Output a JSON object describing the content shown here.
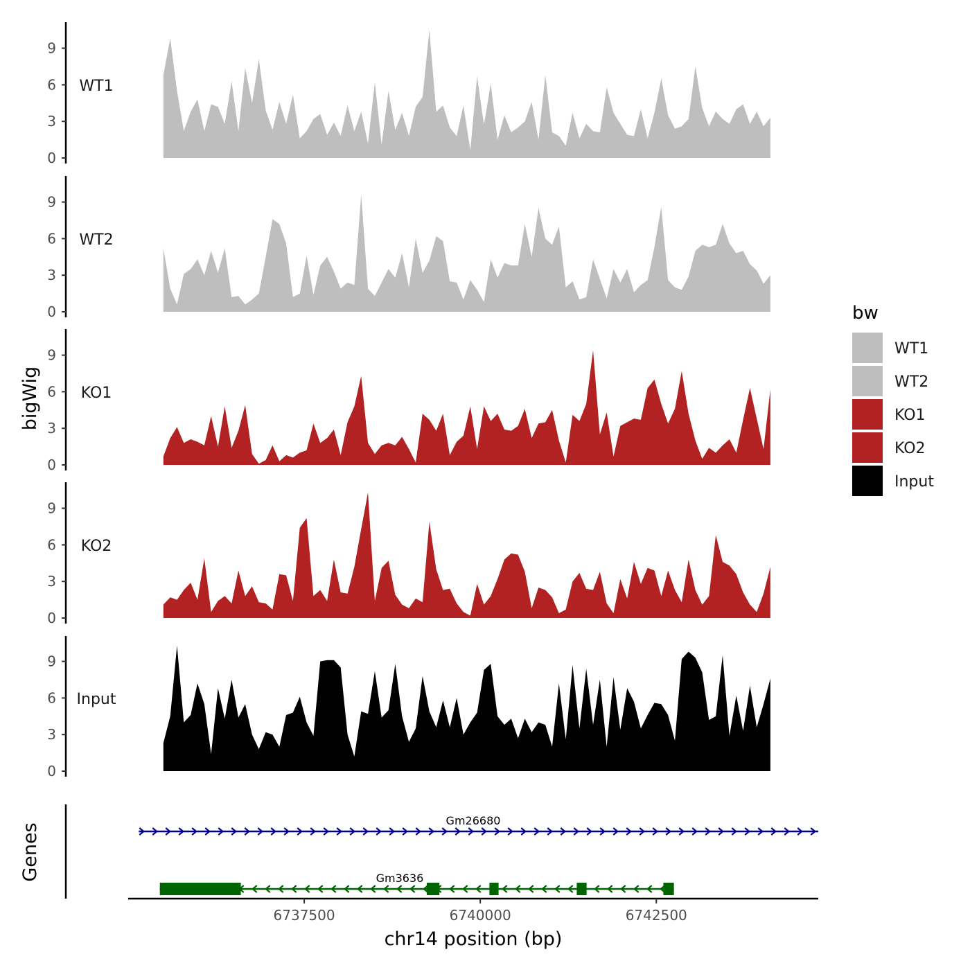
{
  "chart_data": {
    "type": "area",
    "title": "",
    "ylabel": "bigWig",
    "xlabel": "chr14 position (bp)",
    "genes_label": "Genes",
    "ylim": [
      0,
      11
    ],
    "y_ticks": [
      0,
      3,
      6,
      9
    ],
    "x_range": [
      6735000,
      6744800
    ],
    "x_ticks": [
      6737500,
      6740000,
      6742500
    ],
    "x_tick_labels": [
      "6737500",
      "6740000",
      "6742500"
    ],
    "signal_x_start": 6735500,
    "signal_x_end": 6744120,
    "legend": {
      "title": "bw",
      "position": "right",
      "entries": [
        {
          "name": "WT1",
          "color": "#bebebe"
        },
        {
          "name": "WT2",
          "color": "#bebebe"
        },
        {
          "name": "KO1",
          "color": "#b22222"
        },
        {
          "name": "KO2",
          "color": "#b22222"
        },
        {
          "name": "Input",
          "color": "#000000"
        }
      ]
    },
    "series": [
      {
        "name": "WT1",
        "color": "#bebebe",
        "values": [
          6.8,
          9.8,
          5.5,
          2.2,
          3.8,
          4.8,
          2.2,
          4.4,
          4.2,
          2.8,
          6.3,
          2.2,
          7.4,
          4.5,
          8.1,
          3.9,
          2.3,
          4.6,
          2.8,
          5.2,
          1.6,
          2.2,
          3.2,
          3.6,
          1.9,
          2.9,
          1.8,
          4.3,
          2.2,
          3.8,
          1.2,
          6.2,
          1.1,
          5.5,
          2.3,
          3.7,
          1.8,
          4.2,
          5.0,
          10.5,
          3.8,
          4.3,
          2.5,
          1.8,
          4.3,
          0.6,
          6.7,
          2.7,
          6.1,
          1.5,
          3.5,
          2.1,
          2.5,
          3.0,
          4.6,
          1.5,
          6.8,
          2.1,
          1.8,
          1.0,
          3.7,
          1.6,
          2.8,
          2.2,
          2.1,
          5.8,
          3.7,
          2.8,
          1.9,
          1.8,
          4.0,
          1.6,
          3.7,
          6.5,
          3.5,
          2.4,
          2.6,
          3.2,
          7.5,
          4.1,
          2.6,
          3.8,
          3.2,
          2.8,
          4.0,
          4.4,
          2.8,
          3.8,
          2.6,
          3.3
        ]
      },
      {
        "name": "WT2",
        "color": "#bebebe",
        "values": [
          5.2,
          1.9,
          0.6,
          3.1,
          3.5,
          4.3,
          3.0,
          5.0,
          3.2,
          5.2,
          1.2,
          1.3,
          0.6,
          1.0,
          1.5,
          4.5,
          7.6,
          7.2,
          5.6,
          1.2,
          1.5,
          4.6,
          1.4,
          3.8,
          4.5,
          3.3,
          1.9,
          2.4,
          2.2,
          9.6,
          1.9,
          1.3,
          2.4,
          3.5,
          2.8,
          4.8,
          2.0,
          6.0,
          3.2,
          4.2,
          6.2,
          5.8,
          2.5,
          2.4,
          1.0,
          2.6,
          1.8,
          0.8,
          4.3,
          2.8,
          4.0,
          3.8,
          3.8,
          7.2,
          4.5,
          8.5,
          6.0,
          5.5,
          7.0,
          2.0,
          2.5,
          1.0,
          1.2,
          4.3,
          2.7,
          1.1,
          3.5,
          2.4,
          3.5,
          1.6,
          2.2,
          2.6,
          5.3,
          8.6,
          2.6,
          2.0,
          1.8,
          2.9,
          5.0,
          5.5,
          5.3,
          5.5,
          7.2,
          5.6,
          4.8,
          5.0,
          3.9,
          3.4,
          2.3,
          3.0
        ]
      },
      {
        "name": "KO1",
        "color": "#b22222",
        "values": [
          0.7,
          2.2,
          3.1,
          1.8,
          2.1,
          1.9,
          1.6,
          4.0,
          1.5,
          4.8,
          1.4,
          2.8,
          4.9,
          0.9,
          0.1,
          0.4,
          1.6,
          0.3,
          0.8,
          0.6,
          1.0,
          1.2,
          3.4,
          1.8,
          2.2,
          2.9,
          0.8,
          3.5,
          4.8,
          7.3,
          1.8,
          0.9,
          1.6,
          1.8,
          1.6,
          2.3,
          1.3,
          0.2,
          4.2,
          3.7,
          2.8,
          4.2,
          0.8,
          1.9,
          2.4,
          4.8,
          1.3,
          4.8,
          3.6,
          4.2,
          2.9,
          2.8,
          3.2,
          4.6,
          2.2,
          3.4,
          3.5,
          4.5,
          2.0,
          0.2,
          4.1,
          3.6,
          5.0,
          9.4,
          2.5,
          4.3,
          0.7,
          3.2,
          3.5,
          3.8,
          3.7,
          6.3,
          7.0,
          5.0,
          3.4,
          4.6,
          7.7,
          4.2,
          2.0,
          0.5,
          1.4,
          1.0,
          1.6,
          2.1,
          1.0,
          3.7,
          6.3,
          3.8,
          1.3,
          6.2
        ]
      },
      {
        "name": "KO2",
        "color": "#b22222",
        "values": [
          1.1,
          1.7,
          1.5,
          2.3,
          2.9,
          1.5,
          4.9,
          0.5,
          1.4,
          1.8,
          1.2,
          3.9,
          1.8,
          2.6,
          1.3,
          1.2,
          0.7,
          3.6,
          3.5,
          1.4,
          7.4,
          8.2,
          1.8,
          2.3,
          1.4,
          4.8,
          2.1,
          2.0,
          4.2,
          7.3,
          10.3,
          1.4,
          4.1,
          4.7,
          1.9,
          1.1,
          0.8,
          1.6,
          1.3,
          7.9,
          4.0,
          2.3,
          2.4,
          1.2,
          0.5,
          0.2,
          2.8,
          1.1,
          1.8,
          3.2,
          4.8,
          5.3,
          5.2,
          3.8,
          0.8,
          2.5,
          2.3,
          1.7,
          0.4,
          0.7,
          3.0,
          3.7,
          2.4,
          2.3,
          3.8,
          1.2,
          0.4,
          3.2,
          1.6,
          4.6,
          2.8,
          4.1,
          3.9,
          1.8,
          3.9,
          2.3,
          1.3,
          4.8,
          2.3,
          1.1,
          1.8,
          6.8,
          4.6,
          4.3,
          3.6,
          2.1,
          1.1,
          0.5,
          2.0,
          4.2
        ]
      },
      {
        "name": "Input",
        "color": "#000000",
        "values": [
          2.3,
          4.5,
          10.3,
          4.0,
          4.6,
          7.2,
          5.5,
          1.4,
          6.8,
          4.3,
          7.5,
          4.4,
          5.5,
          3.0,
          1.8,
          3.2,
          3.0,
          2.0,
          4.6,
          4.8,
          6.1,
          4.0,
          2.9,
          9.0,
          9.1,
          9.1,
          8.5,
          3.0,
          1.2,
          4.9,
          4.7,
          8.2,
          4.4,
          5.0,
          8.8,
          4.5,
          2.4,
          3.5,
          7.8,
          4.9,
          3.6,
          5.8,
          3.6,
          6.0,
          3.0,
          4.0,
          4.8,
          8.3,
          8.8,
          4.5,
          3.8,
          4.3,
          2.7,
          4.3,
          3.2,
          4.0,
          3.8,
          2.0,
          7.2,
          2.6,
          8.7,
          3.5,
          8.4,
          3.8,
          7.5,
          2.0,
          7.7,
          3.4,
          6.8,
          5.7,
          3.5,
          4.6,
          5.6,
          5.5,
          4.6,
          2.5,
          9.2,
          9.8,
          9.3,
          8.1,
          4.2,
          4.5,
          9.5,
          2.9,
          6.2,
          3.3,
          7.0,
          3.6,
          5.5,
          7.6
        ]
      }
    ],
    "gene_tracks": [
      {
        "name": "Gm26680",
        "strand": "+",
        "color": "#00008b",
        "start": 6735150,
        "end": 6744800,
        "exons": []
      },
      {
        "name": "Gm3636",
        "strand": "-",
        "color": "#006400",
        "start": 6735450,
        "end": 6742750,
        "exons": [
          [
            6735450,
            6736600
          ],
          [
            6739240,
            6739420
          ],
          [
            6740130,
            6740260
          ],
          [
            6741370,
            6741510
          ],
          [
            6742600,
            6742750
          ]
        ]
      }
    ]
  }
}
